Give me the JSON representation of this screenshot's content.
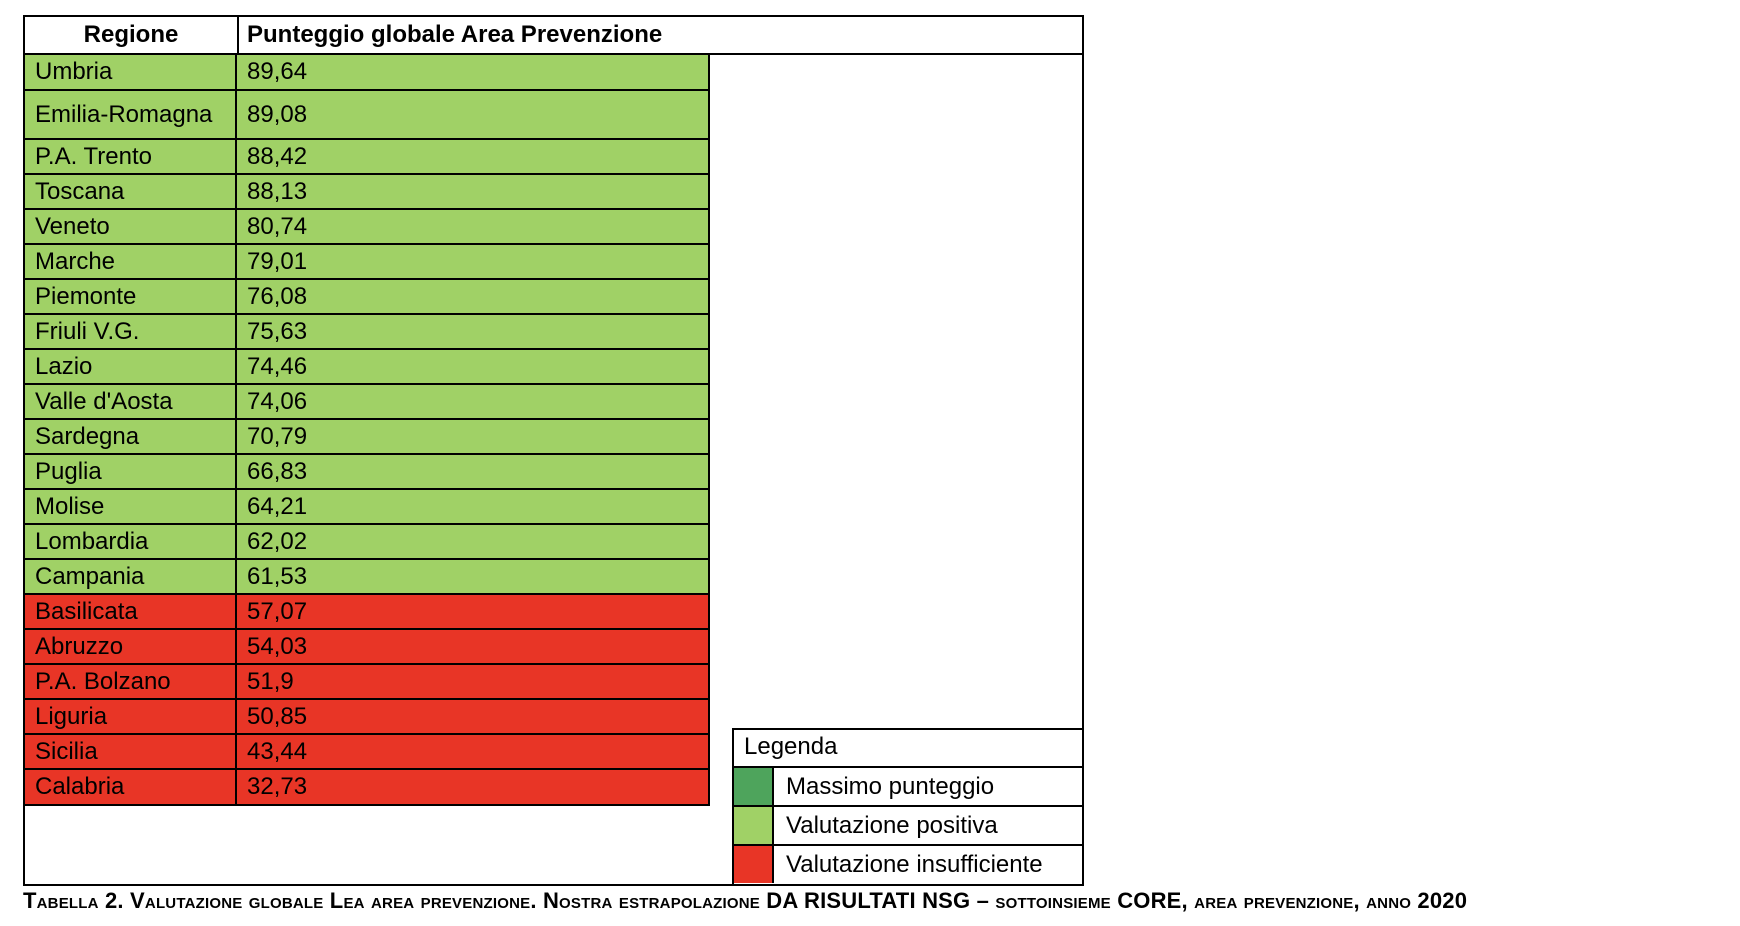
{
  "table": {
    "header": {
      "region": "Regione",
      "score": "Punteggio globale Area Prevenzione"
    },
    "rows": [
      {
        "region": "Umbria",
        "score": "89,64",
        "status": "positive"
      },
      {
        "region": "Emilia-Romagna",
        "score": "89,08",
        "status": "positive"
      },
      {
        "region": "P.A. Trento",
        "score": "88,42",
        "status": "positive"
      },
      {
        "region": "Toscana",
        "score": "88,13",
        "status": "positive"
      },
      {
        "region": "Veneto",
        "score": "80,74",
        "status": "positive"
      },
      {
        "region": "Marche",
        "score": "79,01",
        "status": "positive"
      },
      {
        "region": "Piemonte",
        "score": "76,08",
        "status": "positive"
      },
      {
        "region": "Friuli V.G.",
        "score": "75,63",
        "status": "positive"
      },
      {
        "region": "Lazio",
        "score": "74,46",
        "status": "positive"
      },
      {
        "region": "Valle d'Aosta",
        "score": "74,06",
        "status": "positive"
      },
      {
        "region": "Sardegna",
        "score": "70,79",
        "status": "positive"
      },
      {
        "region": "Puglia",
        "score": "66,83",
        "status": "positive"
      },
      {
        "region": "Molise",
        "score": "64,21",
        "status": "positive"
      },
      {
        "region": "Lombardia",
        "score": "62,02",
        "status": "positive"
      },
      {
        "region": "Campania",
        "score": "61,53",
        "status": "positive"
      },
      {
        "region": "Basilicata",
        "score": "57,07",
        "status": "insufficient"
      },
      {
        "region": "Abruzzo",
        "score": "54,03",
        "status": "insufficient"
      },
      {
        "region": "P.A. Bolzano",
        "score": "51,9",
        "status": "insufficient"
      },
      {
        "region": "Liguria",
        "score": "50,85",
        "status": "insufficient"
      },
      {
        "region": "Sicilia",
        "score": "43,44",
        "status": "insufficient"
      },
      {
        "region": "Calabria",
        "score": "32,73",
        "status": "insufficient"
      }
    ]
  },
  "legend": {
    "title": "Legenda",
    "items": [
      {
        "label": "Massimo punteggio",
        "color": "#4ea45c"
      },
      {
        "label": "Valutazione positiva",
        "color": "#a0d166"
      },
      {
        "label": "Valutazione insufficiente",
        "color": "#e83526"
      }
    ]
  },
  "colors": {
    "positive": "#a0d166",
    "insufficient": "#e83526"
  },
  "caption": "Tabella 2. Valutazione globale Lea area prevenzione. Nostra estrapolazione DA RISULTATI NSG – sottoinsieme CORE, area prevenzione, anno 2020"
}
